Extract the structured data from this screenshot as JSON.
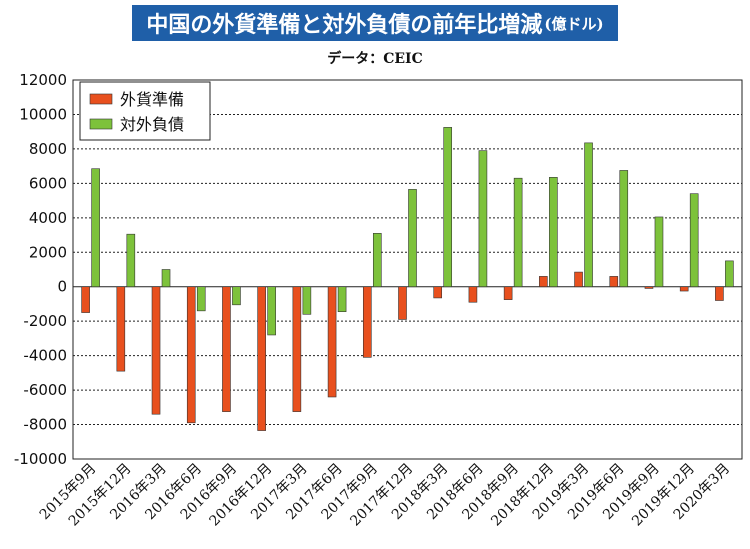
{
  "title": "中国の外貨準備と対外負債の前年比増減",
  "title_unit": "(億ドル)",
  "source": "データ：CEIC",
  "chart_data": {
    "type": "bar",
    "categories": [
      "2015年9月",
      "2015年12月",
      "2016年3月",
      "2016年6月",
      "2016年9月",
      "2016年12月",
      "2017年3月",
      "2017年6月",
      "2017年9月",
      "2017年12月",
      "2018年3月",
      "2018年6月",
      "2018年9月",
      "2018年12月",
      "2019年3月",
      "2019年6月",
      "2019年9月",
      "2019年12月",
      "2020年3月"
    ],
    "series": [
      {
        "name": "外貨準備",
        "color": "#e8501e",
        "values": [
          -1500,
          -4900,
          -7400,
          -7900,
          -7250,
          -8350,
          -7250,
          -6400,
          -4100,
          -1900,
          -650,
          -900,
          -750,
          600,
          850,
          600,
          -100,
          -250,
          -800
        ]
      },
      {
        "name": "対外負債",
        "color": "#7dc23b",
        "values": [
          6850,
          3050,
          1000,
          -1400,
          -1050,
          -2800,
          -1600,
          -1450,
          3100,
          5650,
          9250,
          7900,
          6300,
          6350,
          8350,
          6750,
          4050,
          5400,
          1500
        ]
      }
    ],
    "ylim": [
      -10000,
      12000
    ],
    "yticks": [
      "12000",
      "10000",
      "8000",
      "6000",
      "4000",
      "2000",
      "0",
      "-2000",
      "-4000",
      "-6000",
      "-8000",
      "-10000"
    ],
    "grid": true,
    "legend_position": "top-left"
  }
}
